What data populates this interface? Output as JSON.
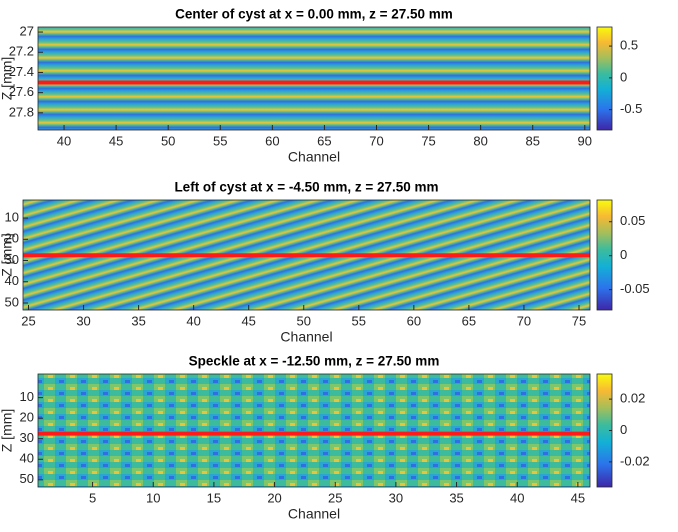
{
  "chart_data": [
    {
      "type": "heatmap",
      "title": "Center of cyst at x = 0.00 mm, z = 27.50 mm",
      "xlabel": "Channel",
      "ylabel": "Z [mm]",
      "xlim": [
        37.5,
        90.5
      ],
      "xticks": [
        40,
        45,
        50,
        55,
        60,
        65,
        70,
        75,
        80,
        85,
        90
      ],
      "ylim": [
        26.95,
        27.97
      ],
      "yticks": [
        27,
        27.2,
        27.4,
        27.6,
        27.8
      ],
      "y_reversed": true,
      "hline": 27.5,
      "hline_color": "#ff1a1a",
      "colormap": "parula",
      "clim": [
        -0.82,
        0.8
      ],
      "cticks": [
        -0.5,
        0,
        0.5
      ]
    },
    {
      "type": "heatmap",
      "title": "Left of cyst at x = -4.50 mm, z = 27.50 mm",
      "xlabel": "Channel",
      "ylabel": "Z [mm]",
      "xlim": [
        24.5,
        76
      ],
      "xticks": [
        25,
        30,
        35,
        40,
        45,
        50,
        55,
        60,
        65,
        70,
        75
      ],
      "ylim": [
        1.5,
        53.3
      ],
      "yticks": [
        10,
        20,
        30,
        40,
        50
      ],
      "y_reversed": true,
      "hline": 27.5,
      "hline_color": "#ff1a1a",
      "colormap": "parula",
      "clim": [
        -0.08,
        0.082
      ],
      "cticks": [
        -0.05,
        0,
        0.05
      ]
    },
    {
      "type": "heatmap",
      "title": "Speckle at x = -12.50 mm, z = 27.50 mm",
      "xlabel": "Channel",
      "ylabel": "Z [mm]",
      "xlim": [
        0.5,
        46
      ],
      "xticks": [
        5,
        10,
        15,
        20,
        25,
        30,
        35,
        40,
        45
      ],
      "ylim": [
        -1.5,
        53.5
      ],
      "yticks": [
        10,
        20,
        30,
        40,
        50
      ],
      "y_reversed": true,
      "hline": 27.5,
      "hline_color": "#ff1a1a",
      "colormap": "parula",
      "clim": [
        -0.036,
        0.036
      ],
      "cticks": [
        -0.02,
        0,
        0.02
      ]
    }
  ]
}
